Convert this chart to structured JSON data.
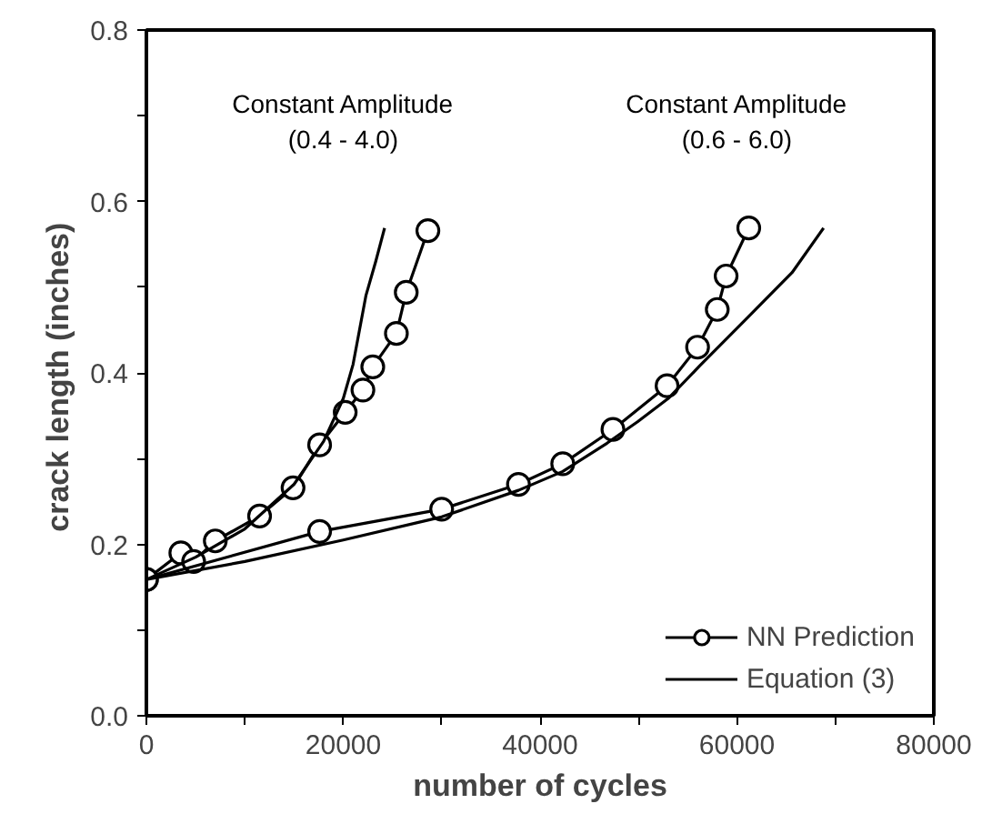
{
  "chart_data": {
    "type": "line",
    "xlabel": "number of cycles",
    "ylabel": "crack length  (inches)",
    "xlim": [
      0,
      80000
    ],
    "ylim": [
      0,
      0.8
    ],
    "xticks": [
      0,
      {
        "value": 10000,
        "label": null
      },
      20000,
      {
        "value": 30000,
        "label": null
      },
      40000,
      {
        "value": 50000,
        "label": null
      },
      60000,
      {
        "value": 70000,
        "label": null
      },
      80000
    ],
    "yticks": [
      {
        "value": 0,
        "label": "0.0"
      },
      {
        "value": 0.1,
        "label": null
      },
      0.2,
      {
        "value": 0.3,
        "label": null
      },
      0.4,
      {
        "value": 0.5,
        "label": null
      },
      0.6,
      {
        "value": 0.7,
        "label": null
      },
      0.8
    ],
    "grid": false,
    "legend": "bottom right",
    "line_style": "solid",
    "annotations": [
      "Constant Amplitude\n(0.4 - 4.0)",
      "Constant Amplitude\n(0.6 - 6.0)"
    ],
    "series": [
      {
        "name": "NN Prediction",
        "color": "#000000",
        "marker": "circle",
        "x": [
          0,
          3500,
          4800,
          7000,
          11500,
          14900,
          17600,
          20200,
          22000,
          23000,
          25400,
          26400,
          28600
        ],
        "values": [
          0.159,
          0.19,
          0.18,
          0.204,
          0.233,
          0.266,
          0.316,
          0.354,
          0.38,
          0.407,
          0.446,
          0.494,
          0.566
        ]
      },
      {
        "color": "#000000",
        "marker": "circle",
        "x": [
          0,
          17600,
          30000,
          37800,
          42300,
          47400,
          52900,
          56000,
          58000,
          58900,
          61200
        ],
        "values": [
          0.159,
          0.215,
          0.241,
          0.27,
          0.294,
          0.334,
          0.385,
          0.43,
          0.474,
          0.513,
          0.569
        ]
      },
      {
        "name": "Equation (3)",
        "color": "#000000",
        "marker": "none",
        "x": [
          0,
          5000,
          10000,
          15000,
          18000,
          20000,
          21000,
          22300,
          23300,
          24200
        ],
        "values": [
          0.159,
          0.185,
          0.218,
          0.27,
          0.32,
          0.37,
          0.41,
          0.49,
          0.53,
          0.569
        ]
      },
      {
        "color": "#000000",
        "marker": "none",
        "x": [
          0,
          10000,
          20000,
          30000,
          37800,
          42300,
          46800,
          49900,
          53000,
          56200,
          61200,
          65600,
          68800
        ],
        "values": [
          0.159,
          0.18,
          0.205,
          0.232,
          0.263,
          0.285,
          0.318,
          0.343,
          0.37,
          0.408,
          0.466,
          0.517,
          0.569
        ]
      }
    ]
  }
}
